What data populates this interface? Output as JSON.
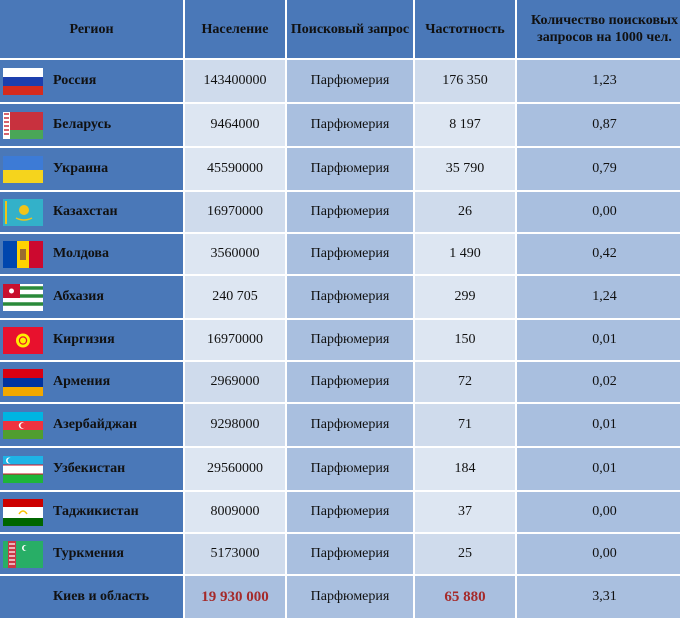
{
  "headers": {
    "region": "Регион",
    "population": "Население",
    "query": "Поисковый запрос",
    "frequency": "Частотность",
    "per1000": "Количество поисковых запросов на 1000 чел."
  },
  "rows": [
    {
      "region": "Россия",
      "population": "143400000",
      "query": "Парфюмерия",
      "frequency": "176 350",
      "per1000": "1,23",
      "flag": "russia-flag-icon"
    },
    {
      "region": "Беларусь",
      "population": "9464000",
      "query": "Парфюмерия",
      "frequency": "8 197",
      "per1000": "0,87",
      "flag": "belarus-flag-icon"
    },
    {
      "region": "Украина",
      "population": "45590000",
      "query": "Парфюмерия",
      "frequency": "35 790",
      "per1000": "0,79",
      "flag": "ukraine-flag-icon"
    },
    {
      "region": "Казахстан",
      "population": "16970000",
      "query": "Парфюмерия",
      "frequency": "26",
      "per1000": "0,00",
      "flag": "kazakhstan-flag-icon"
    },
    {
      "region": "Молдова",
      "population": "3560000",
      "query": "Парфюмерия",
      "frequency": "1 490",
      "per1000": "0,42",
      "flag": "moldova-flag-icon"
    },
    {
      "region": "Абхазия",
      "population": "240 705",
      "query": "Парфюмерия",
      "frequency": "299",
      "per1000": "1,24",
      "flag": "abkhazia-flag-icon"
    },
    {
      "region": "Киргизия",
      "population": "16970000",
      "query": "Парфюмерия",
      "frequency": "150",
      "per1000": "0,01",
      "flag": "kyrgyzstan-flag-icon"
    },
    {
      "region": "Армения",
      "population": "2969000",
      "query": "Парфюмерия",
      "frequency": "72",
      "per1000": "0,02",
      "flag": "armenia-flag-icon"
    },
    {
      "region": "Азербайджан",
      "population": "9298000",
      "query": "Парфюмерия",
      "frequency": "71",
      "per1000": "0,01",
      "flag": "azerbaijan-flag-icon"
    },
    {
      "region": "Узбекистан",
      "population": "29560000",
      "query": "Парфюмерия",
      "frequency": "184",
      "per1000": "0,01",
      "flag": "uzbekistan-flag-icon"
    },
    {
      "region": "Таджикистан",
      "population": "8009000",
      "query": "Парфюмерия",
      "frequency": "37",
      "per1000": "0,00",
      "flag": "tajikistan-flag-icon"
    },
    {
      "region": "Туркмения",
      "population": "5173000",
      "query": "Парфюмерия",
      "frequency": "25",
      "per1000": "0,00",
      "flag": "turkmenistan-flag-icon"
    }
  ],
  "total": {
    "region": "Киев и область",
    "population": "19 930 000",
    "query": "Парфюмерия",
    "frequency": "65 880",
    "per1000": "3,31"
  },
  "colors": {
    "header_bg": "#4a78b8",
    "cell_light": "#cfdbec",
    "cell_mid": "#a9bfdf",
    "total_highlight": "#a52a2a"
  }
}
